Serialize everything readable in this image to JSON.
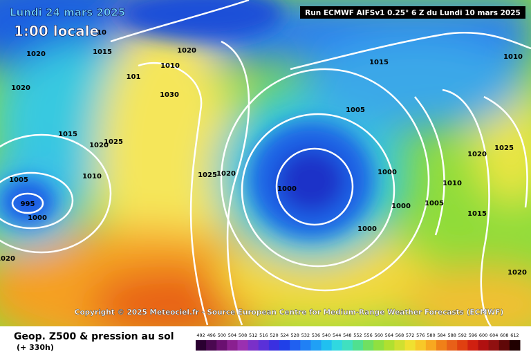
{
  "header": {
    "date": "Lundi 24 mars 2025",
    "time": "1:00 locale",
    "run": "Run ECMWF AIFSv1 0.25° 6 Z du Lundi 10 mars 2025"
  },
  "map": {
    "isobar_labels": [
      "1020",
      "1015",
      "1020",
      "1015",
      "1020",
      "1025",
      "1010",
      "1005",
      "995",
      "1000",
      "1030",
      "1025",
      "1020",
      "1015",
      "1005",
      "1000",
      "1000",
      "1000",
      "1000",
      "1005",
      "1010",
      "1015",
      "1020",
      "1025",
      "1010",
      "1020",
      "1020",
      "1020",
      "1010",
      "101",
      "10"
    ]
  },
  "copyright": "Copyright © 2025 Meteociel.fr - Source European Centre for Medium-Range Weather Forecasts (ECMWF)",
  "footer": {
    "title": "Geop. Z500 & pression au sol",
    "subtitle": "(+ 330h)"
  },
  "colorbar": {
    "labels": [
      492,
      496,
      500,
      504,
      508,
      512,
      516,
      520,
      524,
      528,
      532,
      536,
      540,
      544,
      548,
      552,
      556,
      560,
      564,
      568,
      572,
      576,
      580,
      584,
      588,
      592,
      596,
      600,
      604,
      608,
      612
    ]
  }
}
